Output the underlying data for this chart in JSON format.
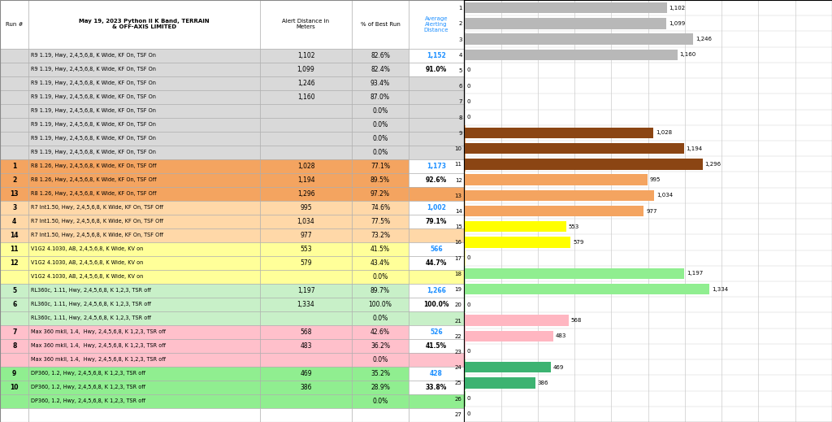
{
  "title_col1": "May 19, 2023 Python II K Band, TERRAIN\n& OFF-AXIS LIMITED",
  "title_col2": "Alert Distance in\nMeters",
  "title_col3": "% of Best Run",
  "title_col4": "Average\nAlerting\nDistance",
  "run_numbers": [
    "",
    "",
    "",
    "",
    "",
    "",
    "",
    "",
    "1",
    "2",
    "13",
    "3",
    "4",
    "14",
    "11",
    "12",
    "",
    "5",
    "6",
    "",
    "7",
    "8",
    "",
    "9",
    "10",
    "",
    ""
  ],
  "row_labels": [
    "R9 1.19, Hwy, 2,4,5,6,8, K Wide, KF On, TSF On",
    "R9 1.19, Hwy, 2,4,5,6,8, K Wide, KF On, TSF On",
    "R9 1.19, Hwy, 2,4,5,6,8, K Wide, KF On, TSF On",
    "R9 1.19, Hwy, 2,4,5,6,8, K Wide, KF On, TSF On",
    "R9 1.19, Hwy, 2,4,5,6,8, K Wide, KF On, TSF On",
    "R9 1.19, Hwy, 2,4,5,6,8, K Wide, KF On, TSF On",
    "R9 1.19, Hwy, 2,4,5,6,8, K Wide, KF On, TSF On",
    "R9 1.19, Hwy, 2,4,5,6,8, K Wide, KF On, TSF On",
    "R8 1.26, Hwy, 2,4,5,6,8, K Wide, KF On, TSF Off",
    "R8 1.26, Hwy, 2,4,5,6,8, K Wide, KF On, TSF Off",
    "R8 1.26, Hwy, 2,4,5,6,8, K Wide, KF On, TSF Off",
    "R7 Int1.50, Hwy, 2,4,5,6,8, K Wide, KF On, TSF Off",
    "R7 Int1.50, Hwy, 2,4,5,6,8, K Wide, KF On, TSF Off",
    "R7 Int1.50, Hwy, 2,4,5,6,8, K Wide, KF On, TSF Off",
    "V1G2 4.1030, AB, 2,4,5,6,8, K Wide, KV on",
    "V1G2 4.1030, AB, 2,4,5,6,8, K Wide, KV on",
    "V1G2 4.1030, AB, 2,4,5,6,8, K Wide, KV on",
    "RL360c, 1.11, Hwy, 2,4,5,6,8, K 1,2,3, TSR off",
    "RL360c, 1.11, Hwy, 2,4,5,6,8, K 1,2,3, TSR off",
    "RL360c, 1.11, Hwy, 2,4,5,6,8, K 1,2,3, TSR off",
    "Max 360 mkll, 1.4,  Hwy, 2,4,5,6,8, K 1,2,3, TSR off",
    "Max 360 mkll, 1.4,  Hwy, 2,4,5,6,8, K 1,2,3, TSR off",
    "Max 360 mkll, 1.4,  Hwy, 2,4,5,6,8, K 1,2,3, TSR off",
    "DP360, 1.2, Hwy, 2,4,5,6,8, K 1,2,3, TSR off",
    "DP360, 1.2, Hwy, 2,4,5,6,8, K 1,2,3, TSR off",
    "DP360, 1.2, Hwy, 2,4,5,6,8, K 1,2,3, TSR off",
    ""
  ],
  "alert_distances": [
    1102,
    1099,
    1246,
    1160,
    null,
    null,
    null,
    null,
    1028,
    1194,
    1296,
    995,
    1034,
    977,
    553,
    579,
    null,
    1197,
    1334,
    null,
    568,
    483,
    null,
    469,
    386,
    null,
    null
  ],
  "pct_best": [
    "82.6%",
    "82.4%",
    "93.4%",
    "87.0%",
    "0.0%",
    "0.0%",
    "0.0%",
    "0.0%",
    "77.1%",
    "89.5%",
    "97.2%",
    "74.6%",
    "77.5%",
    "73.2%",
    "41.5%",
    "43.4%",
    "0.0%",
    "89.7%",
    "100.0%",
    "0.0%",
    "42.6%",
    "36.2%",
    "0.0%",
    "35.2%",
    "28.9%",
    "0.0%",
    ""
  ],
  "avg_dist": [
    "1,152",
    "91.0%",
    "",
    "",
    "",
    "",
    "",
    "",
    "1,173",
    "92.6%",
    "",
    "1,002",
    "79.1%",
    "",
    "566",
    "44.7%",
    "",
    "1,266",
    "100.0%",
    "",
    "526",
    "41.5%",
    "",
    "428",
    "33.8%",
    "",
    ""
  ],
  "bar_values": [
    1102,
    1099,
    1246,
    1160,
    0,
    0,
    0,
    0,
    1028,
    1194,
    1296,
    995,
    1034,
    977,
    553,
    579,
    0,
    1197,
    1334,
    0,
    568,
    483,
    0,
    469,
    386,
    0,
    0
  ],
  "bar_colors": [
    "#b8b8b8",
    "#b8b8b8",
    "#b8b8b8",
    "#b8b8b8",
    "#b8b8b8",
    "#b8b8b8",
    "#b8b8b8",
    "#b8b8b8",
    "#8B4513",
    "#8B4513",
    "#8B4513",
    "#f4a460",
    "#f4a460",
    "#f4a460",
    "#ffff00",
    "#ffff00",
    "#ffff00",
    "#90EE90",
    "#90EE90",
    "#90EE90",
    "#ffb6c1",
    "#ffb6c1",
    "#ffb6c1",
    "#3cb371",
    "#3cb371",
    "#3cb371",
    "#ffffff"
  ],
  "row_bg_colors": [
    "#d9d9d9",
    "#d9d9d9",
    "#d9d9d9",
    "#d9d9d9",
    "#d9d9d9",
    "#d9d9d9",
    "#d9d9d9",
    "#d9d9d9",
    "#f4a460",
    "#f4a460",
    "#f4a460",
    "#ffd8a8",
    "#ffd8a8",
    "#ffd8a8",
    "#ffff99",
    "#ffff99",
    "#ffff99",
    "#c8f0c8",
    "#c8f0c8",
    "#c8f0c8",
    "#ffc0cb",
    "#ffc0cb",
    "#ffc0cb",
    "#90ee90",
    "#90ee90",
    "#90ee90",
    "#ffffff"
  ],
  "chart_bg": "#ffffff",
  "x_max": 2000,
  "x_ticks": [
    0,
    200,
    400,
    600,
    800,
    1000,
    1200,
    1400,
    1600,
    1800,
    2000
  ],
  "n_rows": 27,
  "avg_color": "#1e90ff"
}
